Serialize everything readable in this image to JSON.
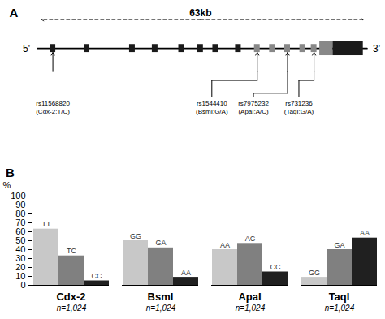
{
  "chart_data": [
    {
      "type": "diagram",
      "title": "A",
      "annotations": [
        "63kb",
        "5'",
        "3'",
        "rs11568820\n(Cdx-2:T/C)",
        "rs1544410\n(BsmI:G/A)",
        "rs7975232\n(ApaI:A/C)",
        "rs731236\n(TaqI:G/A)"
      ]
    },
    {
      "type": "bar",
      "title": "B",
      "categories": [
        "Cdx-2",
        "BsmI",
        "ApaI",
        "TaqI"
      ],
      "series": [
        {
          "color": "#c8c8c8",
          "values": [
            63,
            50,
            40,
            9
          ],
          "bar_labels": [
            "TT",
            "GG",
            "AA",
            "GG"
          ]
        },
        {
          "color": "#808080",
          "values": [
            33,
            42,
            47,
            40
          ],
          "bar_labels": [
            "TC",
            "GA",
            "AC",
            "GA"
          ]
        },
        {
          "color": "#202020",
          "values": [
            5,
            9,
            15,
            53
          ],
          "bar_labels": [
            "CC",
            "AA",
            "CC",
            "AA"
          ]
        }
      ],
      "ylabel": "%",
      "ylim": [
        0,
        100
      ],
      "yticks": [
        0,
        10,
        20,
        30,
        40,
        50,
        60,
        70,
        80,
        90,
        100
      ],
      "annotations": [
        "n=1,024"
      ],
      "grid": false
    }
  ]
}
